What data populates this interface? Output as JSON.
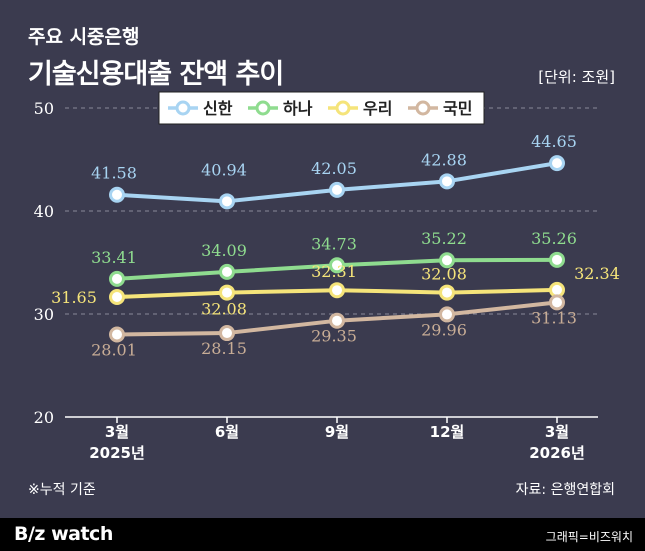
{
  "header": {
    "subtitle": "주요 시중은행",
    "title": "기술신용대출 잔액 추이",
    "unit": "[단위: 조원]"
  },
  "chart_data": {
    "type": "line",
    "categories": [
      "3월|2025년",
      "6월",
      "9월",
      "12월",
      "3월|2026년"
    ],
    "ylim": [
      20,
      50
    ],
    "yticks": [
      20,
      30,
      40,
      50
    ],
    "grid": true,
    "legend_position": "top",
    "series": [
      {
        "name": "신한",
        "color": "#a8d4f2",
        "label_color": "#a8d4f2",
        "values": [
          41.58,
          40.94,
          42.05,
          42.88,
          44.65
        ]
      },
      {
        "name": "하나",
        "color": "#8fdc8f",
        "label_color": "#8fdc8f",
        "values": [
          33.41,
          34.09,
          34.73,
          35.22,
          35.26
        ]
      },
      {
        "name": "우리",
        "color": "#f5e47a",
        "label_color": "#f5e47a",
        "values": [
          31.65,
          32.08,
          32.31,
          32.08,
          32.34
        ]
      },
      {
        "name": "국민",
        "color": "#d2b7a0",
        "label_color": "#c8ad96",
        "values": [
          28.01,
          28.15,
          29.35,
          29.96,
          31.13
        ]
      }
    ]
  },
  "footnote": "※누적 기준",
  "source": "자료: 은행연합회",
  "footer": {
    "brand": "B/z watch",
    "credit": "그래픽=비즈워치"
  }
}
